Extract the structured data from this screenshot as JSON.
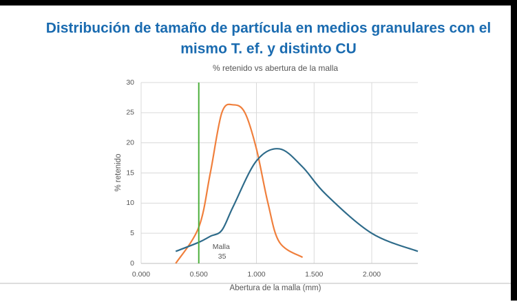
{
  "chart_data": {
    "type": "line",
    "title": [
      "Distribución de tamaño de partícula en medios granulares con el",
      "mismo T. ef. y distinto CU"
    ],
    "subtitle": "% retenido vs abertura de la malla",
    "xlabel": "Abertura de la malla (mm)",
    "ylabel": "% retenido",
    "xlim": [
      0,
      2.4
    ],
    "xticks": [
      {
        "value": 0,
        "label": "0.000"
      },
      {
        "value": 0.5,
        "label": "0.500"
      },
      {
        "value": 1,
        "label": "1.000"
      },
      {
        "value": 1.5,
        "label": "1.500"
      },
      {
        "value": 2,
        "label": "2.000"
      }
    ],
    "ylim": [
      0,
      30
    ],
    "yticks": [
      0,
      5,
      10,
      15,
      20,
      25,
      30
    ],
    "grid": true,
    "smooth": true,
    "series": [
      {
        "color": "#f07f3c",
        "x": [
          0.3,
          0.5,
          0.6,
          0.7,
          0.8,
          0.9,
          1.0,
          1.1,
          1.2,
          1.4
        ],
        "values": [
          0,
          6,
          15,
          25,
          26.3,
          25,
          19,
          10,
          3.5,
          1
        ]
      },
      {
        "color": "#2e6b8a",
        "x": [
          0.3,
          0.5,
          0.6,
          0.7,
          0.8,
          1.0,
          1.2,
          1.4,
          1.6,
          2.0,
          2.4
        ],
        "values": [
          2,
          3.5,
          4.5,
          5.5,
          9.5,
          17,
          19,
          16,
          11.5,
          5,
          2
        ]
      }
    ],
    "vline": {
      "x": 0.5,
      "color": "#4caf3c",
      "label": [
        "Malla",
        "35"
      ]
    }
  }
}
